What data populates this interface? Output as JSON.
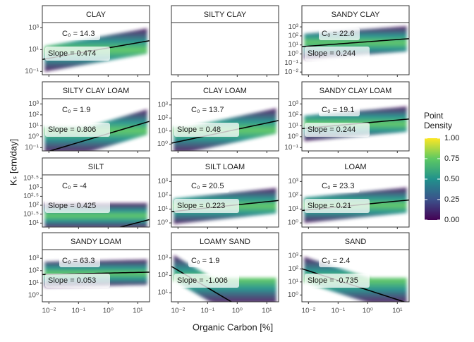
{
  "chart_data": {
    "type": "facet-density",
    "xlabel": "Organic Carbon [%]",
    "ylabel": "Kₛ [cm/day]",
    "log_x": true,
    "log_y": true,
    "xlim": [
      0.006,
      25
    ],
    "xticks": [
      {
        "value": 0.01,
        "label": "10⁻²"
      },
      {
        "value": 0.1,
        "label": "10⁻¹"
      },
      {
        "value": 1,
        "label": "10⁰"
      },
      {
        "value": 10,
        "label": "10¹"
      }
    ],
    "c0_prefix": "C₀ = ",
    "slope_prefix": "Slope = ",
    "line_color": "#000000",
    "panels": [
      {
        "title": "CLAY",
        "c0": 14.3,
        "slope": 0.474,
        "ylim": [
          0.05,
          3000
        ],
        "yticks": [
          {
            "value": 0.1,
            "label": "10⁻¹"
          },
          {
            "value": 10,
            "label": "10¹"
          },
          {
            "value": 1000,
            "label": "10³"
          }
        ]
      },
      {
        "title": "SILTY CLAY"
      },
      {
        "title": "SANDY CLAY",
        "c0": 22.6,
        "slope": 0.244,
        "ylim": [
          0.005,
          3000
        ],
        "yticks": [
          {
            "value": 0.01,
            "label": "10⁻²"
          },
          {
            "value": 0.1,
            "label": "10⁻¹"
          },
          {
            "value": 1,
            "label": "10⁰"
          },
          {
            "value": 10,
            "label": "10¹"
          },
          {
            "value": 100,
            "label": "10²"
          },
          {
            "value": 1000,
            "label": "10³"
          }
        ]
      },
      {
        "title": "SILTY CLAY LOAM",
        "c0": 1.9,
        "slope": 0.806,
        "ylim": [
          0.05,
          3000
        ],
        "yticks": [
          {
            "value": 0.1,
            "label": "10⁻¹"
          },
          {
            "value": 1,
            "label": "10⁰"
          },
          {
            "value": 10,
            "label": "10¹"
          },
          {
            "value": 100,
            "label": "10²"
          },
          {
            "value": 1000,
            "label": "10³"
          }
        ]
      },
      {
        "title": "CLAY LOAM",
        "c0": 13.7,
        "slope": 0.48,
        "ylim": [
          0.3,
          3000
        ],
        "yticks": [
          {
            "value": 1,
            "label": "10⁰"
          },
          {
            "value": 10,
            "label": "10¹"
          },
          {
            "value": 100,
            "label": "10²"
          },
          {
            "value": 1000,
            "label": "10³"
          }
        ]
      },
      {
        "title": "SANDY CLAY LOAM",
        "c0": 19.1,
        "slope": 0.244,
        "ylim": [
          0.05,
          3000
        ],
        "yticks": [
          {
            "value": 0.1,
            "label": "10⁻¹"
          },
          {
            "value": 1,
            "label": "10⁰"
          },
          {
            "value": 10,
            "label": "10¹"
          },
          {
            "value": 100,
            "label": "10²"
          },
          {
            "value": 1000,
            "label": "10³"
          }
        ]
      },
      {
        "title": "SILT",
        "c0": -4,
        "slope": 0.425,
        "ylim": [
          6,
          5000
        ],
        "yticks": [
          {
            "value": 10,
            "label": "10¹"
          },
          {
            "value": 31.6,
            "label": "10¹·⁵"
          },
          {
            "value": 100,
            "label": "10²"
          },
          {
            "value": 316,
            "label": "10²·⁵"
          },
          {
            "value": 1000,
            "label": "10³"
          },
          {
            "value": 3162,
            "label": "10³·⁵"
          }
        ]
      },
      {
        "title": "SILT LOAM",
        "c0": 20.5,
        "slope": 0.223,
        "ylim": [
          0.5,
          3000
        ],
        "yticks": [
          {
            "value": 1,
            "label": "10⁰"
          },
          {
            "value": 10,
            "label": "10¹"
          },
          {
            "value": 100,
            "label": "10²"
          },
          {
            "value": 1000,
            "label": "10³"
          }
        ]
      },
      {
        "title": "LOAM",
        "c0": 23.3,
        "slope": 0.21,
        "ylim": [
          0.5,
          3000
        ],
        "yticks": [
          {
            "value": 1,
            "label": "10⁰"
          },
          {
            "value": 10,
            "label": "10¹"
          },
          {
            "value": 100,
            "label": "10²"
          },
          {
            "value": 1000,
            "label": "10³"
          }
        ]
      },
      {
        "title": "SANDY LOAM",
        "c0": 63.3,
        "slope": 0.053,
        "ylim": [
          0.3,
          5000
        ],
        "yticks": [
          {
            "value": 1,
            "label": "10⁰"
          },
          {
            "value": 10,
            "label": "10¹"
          },
          {
            "value": 100,
            "label": "10²"
          },
          {
            "value": 1000,
            "label": "10³"
          }
        ]
      },
      {
        "title": "LOAMY SAND",
        "c0": 1.9,
        "slope": -1.006,
        "ylim": [
          3,
          3000
        ],
        "yticks": [
          {
            "value": 10,
            "label": "10¹"
          },
          {
            "value": 100,
            "label": "10²"
          },
          {
            "value": 1000,
            "label": "10³"
          }
        ]
      },
      {
        "title": "SAND",
        "c0": 2.4,
        "slope": -0.735,
        "ylim": [
          0.3,
          3000
        ],
        "yticks": [
          {
            "value": 1,
            "label": "10⁰"
          },
          {
            "value": 10,
            "label": "10¹"
          },
          {
            "value": 100,
            "label": "10²"
          },
          {
            "value": 1000,
            "label": "10³"
          }
        ]
      }
    ],
    "legend_title": [
      "Point",
      "Density"
    ],
    "colorbar_colors": [
      "#440154",
      "#3b528b",
      "#21918c",
      "#5ec962",
      "#fde725"
    ],
    "colorbar_lim": [
      0,
      1
    ],
    "colorbar_ticks": [
      {
        "value": 0,
        "label": "0.00"
      },
      {
        "value": 0.25,
        "label": "0.25"
      },
      {
        "value": 0.5,
        "label": "0.50"
      },
      {
        "value": 0.75,
        "label": "0.75"
      },
      {
        "value": 1,
        "label": "1.00"
      }
    ]
  }
}
